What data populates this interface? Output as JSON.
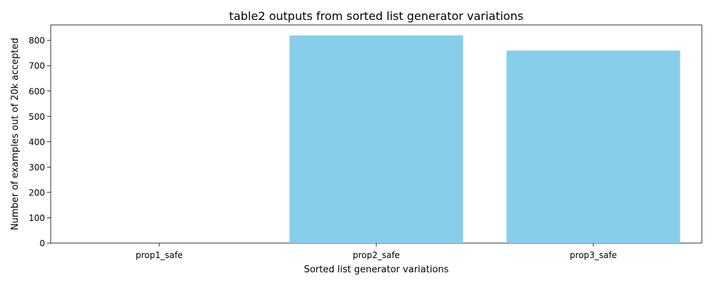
{
  "chart_data": {
    "type": "bar",
    "title": "table2 outputs from sorted list generator variations",
    "xlabel": "Sorted list generator variations",
    "ylabel": "Number of examples out of 20k accepted",
    "categories": [
      "prop1_safe",
      "prop2_safe",
      "prop3_safe"
    ],
    "values": [
      0,
      820,
      760
    ],
    "ylim": [
      0,
      861
    ],
    "yticks": [
      0,
      100,
      200,
      300,
      400,
      500,
      600,
      700,
      800
    ],
    "grid": false,
    "legend": "none",
    "bar_color": "#87ceeb"
  }
}
